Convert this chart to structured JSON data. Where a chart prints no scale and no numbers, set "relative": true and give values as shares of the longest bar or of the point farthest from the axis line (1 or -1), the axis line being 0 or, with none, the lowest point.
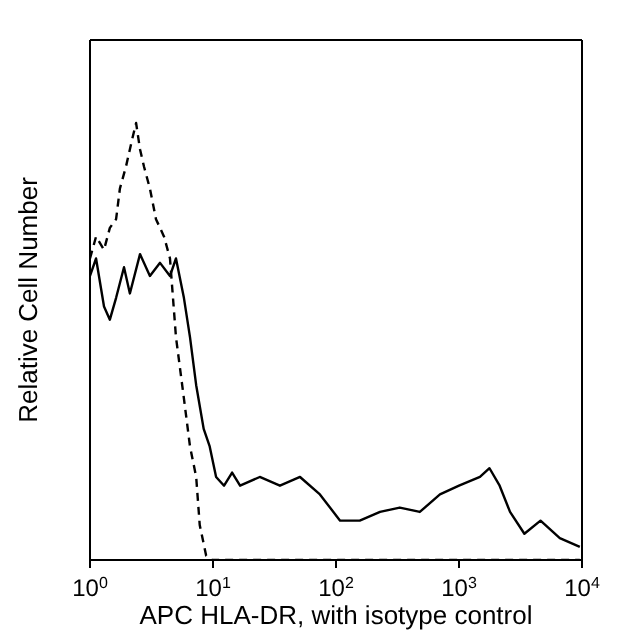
{
  "chart_data": {
    "type": "line",
    "xlabel": "APC HLA-DR, with isotype control",
    "ylabel": "Relative Cell Number",
    "relative": true,
    "log": "x",
    "xlim": [
      1,
      10000
    ],
    "xticks": [
      {
        "value": 1,
        "label": "10$^{0}$"
      },
      {
        "value": 10,
        "label": "10$^{1}$"
      },
      {
        "value": 100,
        "label": "10$^{2}$"
      },
      {
        "value": 1000,
        "label": "10$^{3}$"
      },
      {
        "value": 10000,
        "label": "10$^{4}$"
      }
    ],
    "grid": false,
    "legend": false,
    "marker": "none",
    "series": [
      {
        "color": "#000000",
        "line_style": "solid",
        "x": [
          1,
          1.12,
          1.3,
          1.45,
          1.63,
          1.89,
          2.11,
          2.55,
          3.07,
          3.71,
          4.47,
          5.0,
          5.8,
          6.5,
          7.3,
          8.4,
          9.4,
          10.6,
          12.3,
          14.3,
          16.6,
          24,
          35,
          51,
          74,
          108,
          156,
          228,
          330,
          480,
          700,
          1000,
          1480,
          1770,
          2140,
          2600,
          3400,
          4600,
          6600,
          9600
        ],
        "values": [
          0.65,
          0.69,
          0.58,
          0.55,
          0.6,
          0.67,
          0.61,
          0.7,
          0.65,
          0.68,
          0.65,
          0.69,
          0.6,
          0.51,
          0.4,
          0.3,
          0.26,
          0.19,
          0.17,
          0.2,
          0.17,
          0.19,
          0.17,
          0.19,
          0.15,
          0.09,
          0.09,
          0.11,
          0.12,
          0.11,
          0.15,
          0.17,
          0.19,
          0.21,
          0.17,
          0.11,
          0.06,
          0.09,
          0.05,
          0.03
        ]
      },
      {
        "color": "#000000",
        "line_style": "dashed",
        "x": [
          1,
          1.12,
          1.3,
          1.45,
          1.63,
          1.75,
          1.96,
          2.19,
          2.37,
          2.55,
          2.75,
          3.07,
          3.44,
          4.0,
          4.47,
          5.0,
          5.8,
          6.5,
          7.3,
          7.8,
          8.8,
          9.8,
          100,
          1000,
          9600
        ],
        "values": [
          0.69,
          0.74,
          0.71,
          0.76,
          0.78,
          0.85,
          0.9,
          0.96,
          1,
          0.94,
          0.9,
          0.85,
          0.78,
          0.74,
          0.69,
          0.51,
          0.37,
          0.26,
          0.19,
          0.08,
          0.01,
          0,
          0,
          0,
          0
        ]
      }
    ]
  }
}
